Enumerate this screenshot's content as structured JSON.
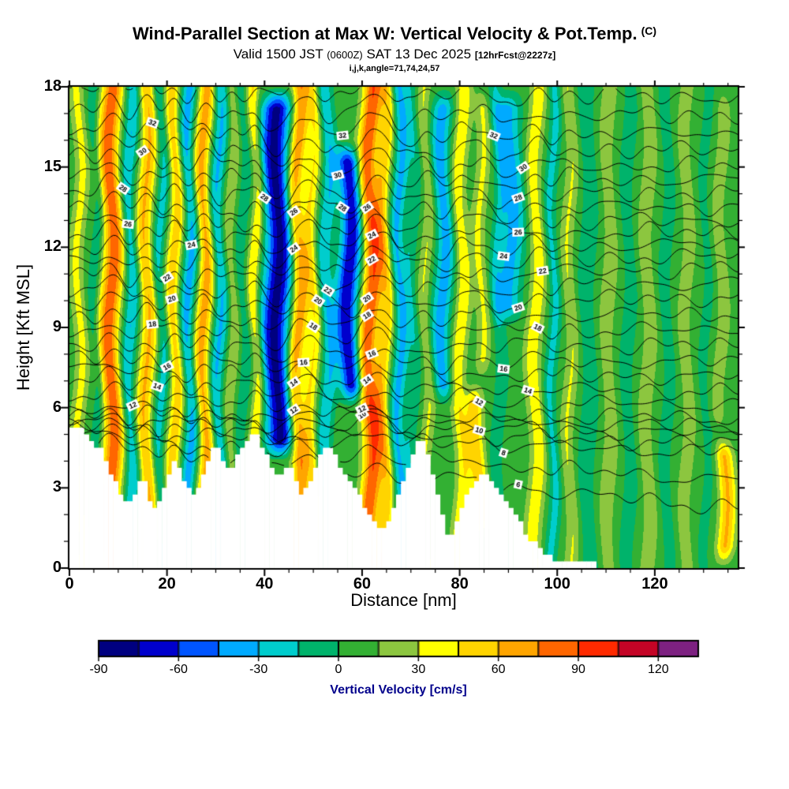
{
  "header": {
    "title": "Wind-Parallel Section at Max W: Vertical Velocity & Pot.Temp.",
    "title_suffix": "(C)",
    "valid_prefix": "Valid 1500 JST",
    "valid_zulu": "(0600Z)",
    "valid_date": "SAT 13 Dec 2025",
    "forecast_tag": "[12hrFcst@2227z]",
    "ijk_line": "i,j,k,angle=71,74,24,57"
  },
  "chart_data": {
    "type": "heatmap",
    "title": "Wind-Parallel Section at Max W: Vertical Velocity & Pot.Temp. (C)",
    "subtitle": "Valid 1500 JST (0600Z) SAT 13 Dec 2025 [12hrFcst@2227z]",
    "xlabel": "Distance [nm]",
    "ylabel": "Height [Kft MSL]",
    "x_axis": {
      "label": "Distance [nm]",
      "min": 0,
      "max": 137,
      "major_ticks": [
        0,
        20,
        40,
        60,
        80,
        100,
        120
      ],
      "minor_step": 5
    },
    "y_axis": {
      "label": "Height [Kft MSL]",
      "min": 0,
      "max": 18,
      "major_ticks": [
        0,
        3,
        6,
        9,
        12,
        15,
        18
      ],
      "minor_step": 1
    },
    "colorbar": {
      "title": "Vertical Velocity [cm/s]",
      "title_color": "#00008b",
      "min": -90,
      "max": 135,
      "step": 15,
      "tick_labels": [
        -90,
        -60,
        -30,
        0,
        30,
        60,
        90,
        120
      ],
      "colors": [
        "#000080",
        "#0000cd",
        "#0055ff",
        "#00aaff",
        "#00cdcd",
        "#00b36b",
        "#33b033",
        "#8cc63f",
        "#ffff00",
        "#ffd400",
        "#ffa500",
        "#ff6600",
        "#ff2a00",
        "#c40426",
        "#7d2181"
      ]
    },
    "background_value": 7,
    "updraft_bands": [
      {
        "x": 2.0,
        "sigma": 1.0,
        "peak": 28
      },
      {
        "x": 5.4,
        "sigma": 0.8,
        "peak": -20
      },
      {
        "x": 8.6,
        "sigma": 1.5,
        "peak": 80
      },
      {
        "x": 12.4,
        "sigma": 1.1,
        "peak": -38
      },
      {
        "x": 15.8,
        "sigma": 1.2,
        "peak": 55
      },
      {
        "x": 18.8,
        "sigma": 0.9,
        "peak": -30
      },
      {
        "x": 21.6,
        "sigma": 1.1,
        "peak": 48
      },
      {
        "x": 24.6,
        "sigma": 1.1,
        "peak": -45
      },
      {
        "x": 27.6,
        "sigma": 1.2,
        "peak": 62
      },
      {
        "x": 30.6,
        "sigma": 1.1,
        "peak": -40
      },
      {
        "x": 33.2,
        "sigma": 0.9,
        "peak": 22
      },
      {
        "x": 35.6,
        "sigma": 0.9,
        "peak": -18
      },
      {
        "x": 38.2,
        "sigma": 0.9,
        "peak": 40
      },
      {
        "x": 42.6,
        "sigma": 2.0,
        "peak": -88,
        "hmin": 4,
        "hmax": 18
      },
      {
        "x": 46.8,
        "sigma": 1.2,
        "peak": 66
      },
      {
        "x": 49.8,
        "sigma": 1.0,
        "peak": 38
      },
      {
        "x": 52.8,
        "sigma": 1.1,
        "peak": -36
      },
      {
        "x": 57.4,
        "sigma": 1.6,
        "peak": -80,
        "hmin": 6,
        "hmax": 16
      },
      {
        "x": 61.6,
        "sigma": 1.4,
        "peak": 82
      },
      {
        "x": 64.6,
        "sigma": 1.1,
        "peak": 46
      },
      {
        "x": 67.6,
        "sigma": 1.1,
        "peak": -42
      },
      {
        "x": 70.4,
        "sigma": 0.9,
        "peak": -20
      },
      {
        "x": 73.2,
        "sigma": 0.9,
        "peak": 24
      },
      {
        "x": 76.6,
        "sigma": 1.4,
        "peak": -45,
        "hmin": 6,
        "hmax": 18
      },
      {
        "x": 80.2,
        "sigma": 1.1,
        "peak": 36
      },
      {
        "x": 83.6,
        "sigma": 1.2,
        "peak": 48,
        "hmin": 1,
        "hmax": 7
      },
      {
        "x": 84.4,
        "sigma": 1.0,
        "peak": 26,
        "hmin": 7,
        "hmax": 18
      },
      {
        "x": 88.0,
        "sigma": 0.9,
        "peak": -22
      },
      {
        "x": 90.5,
        "sigma": 1.8,
        "peak": -42,
        "hmin": 9,
        "hmax": 18
      },
      {
        "x": 95.6,
        "sigma": 1.2,
        "peak": 34
      },
      {
        "x": 99.0,
        "sigma": 0.9,
        "peak": -28
      },
      {
        "x": 102.6,
        "sigma": 1.0,
        "peak": 24
      },
      {
        "x": 106.4,
        "sigma": 1.4,
        "peak": -18
      },
      {
        "x": 110.5,
        "sigma": 1.4,
        "peak": 16
      },
      {
        "x": 114.5,
        "sigma": 1.3,
        "peak": -14
      },
      {
        "x": 118.5,
        "sigma": 1.1,
        "peak": 20
      },
      {
        "x": 122.5,
        "sigma": 1.1,
        "peak": -14
      },
      {
        "x": 126.5,
        "sigma": 1.1,
        "peak": 16
      },
      {
        "x": 130.5,
        "sigma": 1.0,
        "peak": -12
      },
      {
        "x": 134.3,
        "sigma": 1.2,
        "peak": 55,
        "hmin": 0,
        "hmax": 5
      },
      {
        "x": 133.5,
        "sigma": 1.0,
        "peak": 18,
        "hmin": 5,
        "hmax": 18
      }
    ],
    "terrain_profile": [
      [
        0,
        5.2
      ],
      [
        2,
        5.3
      ],
      [
        3,
        5.0
      ],
      [
        4,
        4.8
      ],
      [
        5,
        4.5
      ],
      [
        6,
        4.6
      ],
      [
        7,
        4.2
      ],
      [
        8,
        3.8
      ],
      [
        9,
        3.4
      ],
      [
        10,
        3.0
      ],
      [
        11,
        2.6
      ],
      [
        12,
        2.3
      ],
      [
        13,
        2.5
      ],
      [
        14,
        3.1
      ],
      [
        15,
        3.4
      ],
      [
        16,
        2.9
      ],
      [
        17,
        2.3
      ],
      [
        18,
        2.1
      ],
      [
        19,
        2.7
      ],
      [
        20,
        3.3
      ],
      [
        21,
        3.8
      ],
      [
        22,
        4.0
      ],
      [
        23,
        3.6
      ],
      [
        24,
        3.1
      ],
      [
        25,
        2.8
      ],
      [
        26,
        2.7
      ],
      [
        27,
        3.1
      ],
      [
        28,
        3.7
      ],
      [
        29,
        4.3
      ],
      [
        30,
        4.6
      ],
      [
        31,
        4.3
      ],
      [
        32,
        3.9
      ],
      [
        33,
        3.7
      ],
      [
        34,
        4.0
      ],
      [
        35,
        4.3
      ],
      [
        36,
        4.7
      ],
      [
        37,
        5.0
      ],
      [
        38,
        5.1
      ],
      [
        39,
        4.8
      ],
      [
        40,
        4.4
      ],
      [
        41,
        4.0
      ],
      [
        42,
        3.7
      ],
      [
        43,
        3.4
      ],
      [
        44,
        3.7
      ],
      [
        45,
        3.9
      ],
      [
        46,
        3.5
      ],
      [
        47,
        3.0
      ],
      [
        48,
        2.7
      ],
      [
        49,
        3.1
      ],
      [
        50,
        3.6
      ],
      [
        51,
        4.1
      ],
      [
        52,
        4.5
      ],
      [
        53,
        4.6
      ],
      [
        54,
        4.3
      ],
      [
        55,
        4.0
      ],
      [
        56,
        3.7
      ],
      [
        57,
        3.4
      ],
      [
        58,
        3.1
      ],
      [
        59,
        2.8
      ],
      [
        60,
        2.5
      ],
      [
        61,
        2.2
      ],
      [
        62,
        1.9
      ],
      [
        63,
        1.5
      ],
      [
        64,
        1.3
      ],
      [
        65,
        1.6
      ],
      [
        66,
        2.1
      ],
      [
        67,
        2.6
      ],
      [
        68,
        3.1
      ],
      [
        69,
        3.6
      ],
      [
        70,
        4.1
      ],
      [
        71,
        4.5
      ],
      [
        72,
        4.8
      ],
      [
        73,
        4.5
      ],
      [
        74,
        3.9
      ],
      [
        75,
        3.1
      ],
      [
        76,
        2.3
      ],
      [
        77,
        1.6
      ],
      [
        78,
        1.1
      ],
      [
        79,
        1.4
      ],
      [
        80,
        2.0
      ],
      [
        81,
        2.5
      ],
      [
        82,
        2.9
      ],
      [
        83,
        3.2
      ],
      [
        84,
        3.4
      ],
      [
        85,
        3.5
      ],
      [
        86,
        3.4
      ],
      [
        87,
        3.2
      ],
      [
        88,
        3.0
      ],
      [
        89,
        2.7
      ],
      [
        90,
        2.4
      ],
      [
        91,
        2.1
      ],
      [
        92,
        1.8
      ],
      [
        93,
        1.5
      ],
      [
        94,
        1.2
      ],
      [
        95,
        1.0
      ],
      [
        96,
        0.8
      ],
      [
        97,
        0.6
      ],
      [
        98,
        0.5
      ],
      [
        99,
        0.4
      ],
      [
        100,
        0.3
      ],
      [
        102,
        0.2
      ],
      [
        105,
        0.15
      ],
      [
        110,
        0.1
      ],
      [
        120,
        0.05
      ],
      [
        137,
        0.0
      ]
    ],
    "isentropes": {
      "units": "C",
      "interval_K": 1,
      "min": 6,
      "max": 34,
      "labeled_every_K": 2,
      "anchors": {
        "6": [
          4.6,
          2.2
        ],
        "8": [
          5.1,
          4.3
        ],
        "10": [
          5.5,
          5.0
        ],
        "12": [
          5.9,
          5.6
        ],
        "14": [
          6.9,
          6.6
        ],
        "16": [
          7.8,
          7.7
        ],
        "18": [
          8.8,
          8.9
        ],
        "20": [
          9.8,
          10.1
        ],
        "22": [
          10.8,
          11.2
        ],
        "24": [
          11.9,
          12.1
        ],
        "26": [
          12.9,
          13.0
        ],
        "28": [
          14.0,
          14.0
        ],
        "30": [
          15.2,
          15.0
        ],
        "32": [
          16.4,
          16.2
        ],
        "34": [
          17.8,
          17.6
        ]
      },
      "label_positions": {
        "6": [
          92
        ],
        "8": [
          89
        ],
        "10": [
          60,
          84
        ],
        "12": [
          13,
          46,
          60,
          84
        ],
        "14": [
          18,
          46,
          61,
          94
        ],
        "16": [
          20,
          48,
          62,
          89
        ],
        "18": [
          17,
          50,
          61,
          96
        ],
        "20": [
          21,
          51,
          61,
          92
        ],
        "22": [
          20,
          53,
          62,
          97
        ],
        "24": [
          25,
          46,
          62,
          89
        ],
        "26": [
          12,
          46,
          61,
          92
        ],
        "28": [
          11,
          40,
          56,
          92
        ],
        "30": [
          15,
          55,
          93
        ],
        "32": [
          17,
          56,
          87
        ]
      }
    }
  }
}
